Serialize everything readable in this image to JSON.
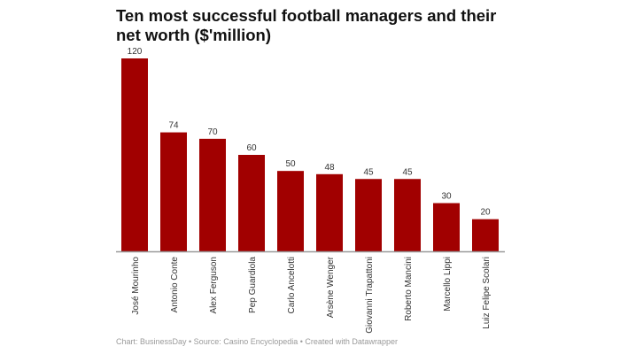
{
  "chart_data": {
    "type": "bar",
    "title": "Ten most successful football managers and their net worth ($'million)",
    "categories": [
      "José Mourinho",
      "Antonio Conte",
      "Alex Ferguson",
      "Pep Guardiola",
      "Carlo Ancelotti",
      "Arsène Wenger",
      "Giovanni Trapattoni",
      "Roberto Mancini",
      "Marcello Lippi",
      "Luiz Felipe Scolari"
    ],
    "values": [
      120,
      74,
      70,
      60,
      50,
      48,
      45,
      45,
      30,
      20
    ],
    "ylim": [
      0,
      120
    ],
    "grid": false,
    "bar_color": "#a10000",
    "data_labels": true
  },
  "footer": "Chart: BusinessDay • Source: Casino Encyclopedia  • Created with Datawrapper"
}
